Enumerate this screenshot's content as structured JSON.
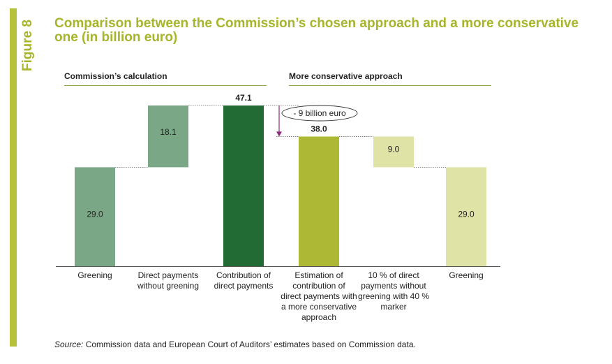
{
  "figure_label": "Figure 8",
  "title": "Comparison between the Commission’s chosen approach and a more conservative one (in billion euro)",
  "sections": {
    "left": "Commission’s calculation",
    "right": "More conservative approach"
  },
  "source": {
    "prefix": "Source:",
    "text": " Commission data and European Court of Auditors’ estimates based on Commission data."
  },
  "colors": {
    "accent": "#a7b52c",
    "green_light": "#7aa886",
    "green_dark": "#236b35",
    "olive": "#adb934",
    "olive_pale": "#dfe3a6"
  },
  "chart_data": {
    "type": "bar",
    "subtype": "waterfall",
    "categories": [
      "Greening",
      "Direct payments without greening",
      "Contribution of direct payments",
      "Estimation of contribution of direct payments with a more conservative approach",
      "10 % of direct payments without greening with 40 % marker",
      "Greening"
    ],
    "category_lines": [
      [
        "Greening"
      ],
      [
        "Direct payments",
        "without greening"
      ],
      [
        "Contribution of",
        "direct payments"
      ],
      [
        "Estimation of",
        "contribution of",
        "direct payments with",
        "a more conservative",
        "approach"
      ],
      [
        "10 % of direct",
        "payments without",
        "greening with 40 %",
        "marker"
      ],
      [
        "Greening"
      ]
    ],
    "bars": [
      {
        "start": 0,
        "end": 29.0,
        "label": "29.0",
        "color": "#7aa886",
        "label_pos": "inside"
      },
      {
        "start": 29.0,
        "end": 47.1,
        "label": "18.1",
        "color": "#7aa886",
        "label_pos": "inside"
      },
      {
        "start": 0,
        "end": 47.1,
        "label": "47.1",
        "color": "#236b35",
        "label_pos": "above"
      },
      {
        "start": 0,
        "end": 38.0,
        "label": "38.0",
        "color": "#adb934",
        "label_pos": "above"
      },
      {
        "start": 29.0,
        "end": 38.0,
        "label": "9.0",
        "color": "#dfe3a6",
        "label_pos": "inside"
      },
      {
        "start": 0,
        "end": 29.0,
        "label": "29.0",
        "color": "#dfe3a6",
        "label_pos": "inside"
      }
    ],
    "annotation": "- 9 billion euro",
    "ylim": [
      0,
      50
    ]
  }
}
